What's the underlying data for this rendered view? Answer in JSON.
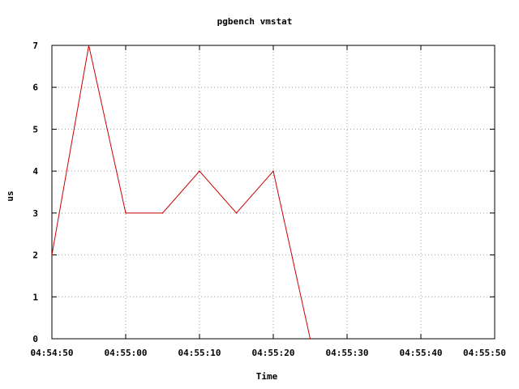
{
  "chart_data": {
    "type": "line",
    "title": "pgbench vmstat",
    "xlabel": "Time",
    "ylabel": "us",
    "x_ticks": [
      "04:54:50",
      "04:55:00",
      "04:55:10",
      "04:55:20",
      "04:55:30",
      "04:55:40",
      "04:55:50"
    ],
    "y_ticks": [
      "0",
      "1",
      "2",
      "3",
      "4",
      "5",
      "6",
      "7"
    ],
    "xlim": [
      "04:54:50",
      "04:55:50"
    ],
    "ylim": [
      0,
      7
    ],
    "grid": true,
    "series": [
      {
        "color": "#cc0000",
        "x": [
          "04:54:50",
          "04:54:55",
          "04:55:00",
          "04:55:05",
          "04:55:10",
          "04:55:15",
          "04:55:20",
          "04:55:25"
        ],
        "y": [
          2,
          7,
          3,
          3,
          4,
          3,
          4,
          0
        ]
      }
    ]
  }
}
